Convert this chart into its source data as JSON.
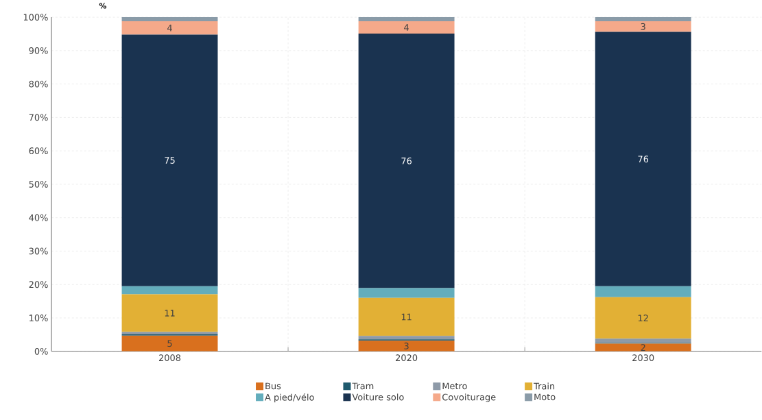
{
  "chart_data": {
    "type": "bar",
    "stacked": true,
    "ylabel": "%",
    "categories": [
      "2008",
      "2020",
      "2030"
    ],
    "series": [
      {
        "name": "Bus",
        "color": "#d9701e",
        "values": [
          4.7,
          3.2,
          2.3
        ],
        "value_labels": [
          "5",
          "3",
          "2"
        ]
      },
      {
        "name": "Tram",
        "color": "#1f5a6e",
        "values": [
          0.4,
          0.4,
          0.2
        ]
      },
      {
        "name": "Metro",
        "color": "#8e9aa8",
        "values": [
          0.7,
          1.0,
          1.3
        ]
      },
      {
        "name": "Train",
        "color": "#e2b035",
        "values": [
          11.3,
          11.4,
          12.4
        ],
        "value_labels": [
          "11",
          "11",
          "12"
        ]
      },
      {
        "name": "A pied/vélo",
        "color": "#63adbc",
        "values": [
          2.4,
          2.9,
          3.3
        ]
      },
      {
        "name": "Voiture solo",
        "color": "#1a3350",
        "values": [
          75.3,
          76.2,
          76.1
        ],
        "value_labels": [
          "75",
          "76",
          "76"
        ]
      },
      {
        "name": "Covoiturage",
        "color": "#f5a98a",
        "values": [
          4.0,
          3.7,
          3.2
        ],
        "value_labels": [
          "4",
          "4",
          "3"
        ]
      },
      {
        "name": "Moto",
        "color": "#8a9ba8",
        "values": [
          1.2,
          1.2,
          1.2
        ]
      }
    ],
    "ylim": [
      0,
      100
    ],
    "yticks": [
      {
        "value": 0,
        "label": "0%"
      },
      {
        "value": 10,
        "label": "10%"
      },
      {
        "value": 20,
        "label": "20%"
      },
      {
        "value": 30,
        "label": "30%"
      },
      {
        "value": 40,
        "label": "40%"
      },
      {
        "value": 50,
        "label": "50%"
      },
      {
        "value": 60,
        "label": "60%"
      },
      {
        "value": 70,
        "label": "70%"
      },
      {
        "value": 80,
        "label": "80%"
      },
      {
        "value": 90,
        "label": "90%"
      },
      {
        "value": 100,
        "label": "100%"
      }
    ],
    "grid": true,
    "legend": "bottom"
  }
}
